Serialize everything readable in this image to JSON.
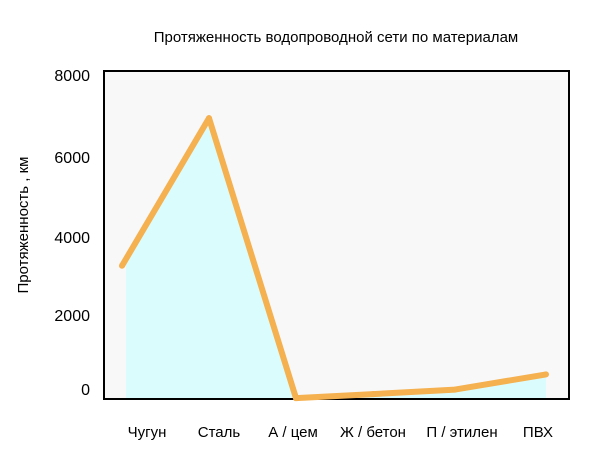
{
  "chart_data": {
    "type": "area",
    "title": "Протяженность водопроводной сети по материалам",
    "ylabel": "Протяженность , км",
    "xlabel": "",
    "categories": [
      "Чугун",
      "Сталь",
      "А / цем",
      "Ж / бетон",
      "П / этилен",
      "ПВХ"
    ],
    "series": [
      {
        "values": [
          3250,
          6850,
          20,
          120,
          230,
          600
        ]
      }
    ],
    "y_ticks": [
      "0",
      "2000",
      "4000",
      "6000",
      "8000"
    ],
    "ylim": [
      0,
      8000
    ],
    "grid": false,
    "legend": "none",
    "colors": {
      "line": "#f5b04f",
      "fill": "#dbfcfc",
      "plot_bg": "#f8f8f8",
      "frame": "#000000"
    }
  }
}
